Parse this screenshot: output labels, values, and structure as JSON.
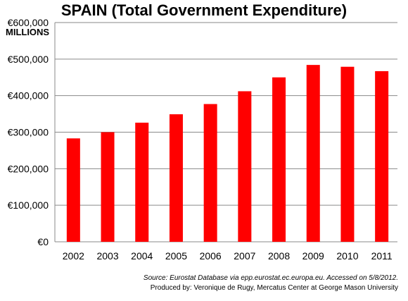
{
  "chart_data": {
    "type": "bar",
    "title": "SPAIN (Total Government Expenditure)",
    "ylabel": "MILLIONS",
    "xlabel": "",
    "categories": [
      "2002",
      "2003",
      "2004",
      "2005",
      "2006",
      "2007",
      "2008",
      "2009",
      "2010",
      "2011"
    ],
    "values": [
      283000,
      300000,
      326000,
      349000,
      377000,
      412000,
      450000,
      484000,
      479000,
      467000
    ],
    "ylim": [
      0,
      600000
    ],
    "yticks": [
      0,
      100000,
      200000,
      300000,
      400000,
      500000,
      600000
    ],
    "ytick_labels": [
      "€0",
      "€100,000",
      "€200,000",
      "€300,000",
      "€400,000",
      "€500,000",
      "€600,000"
    ],
    "grid": true,
    "bar_color": "#ff0000"
  },
  "source": {
    "line1": "Source: Eurostat Database via epp.eurostat.ec.europa.eu. Accessed on 5/8/2012.",
    "line2": "Produced by: Veronique de Rugy, Mercatus Center at George Mason University"
  }
}
